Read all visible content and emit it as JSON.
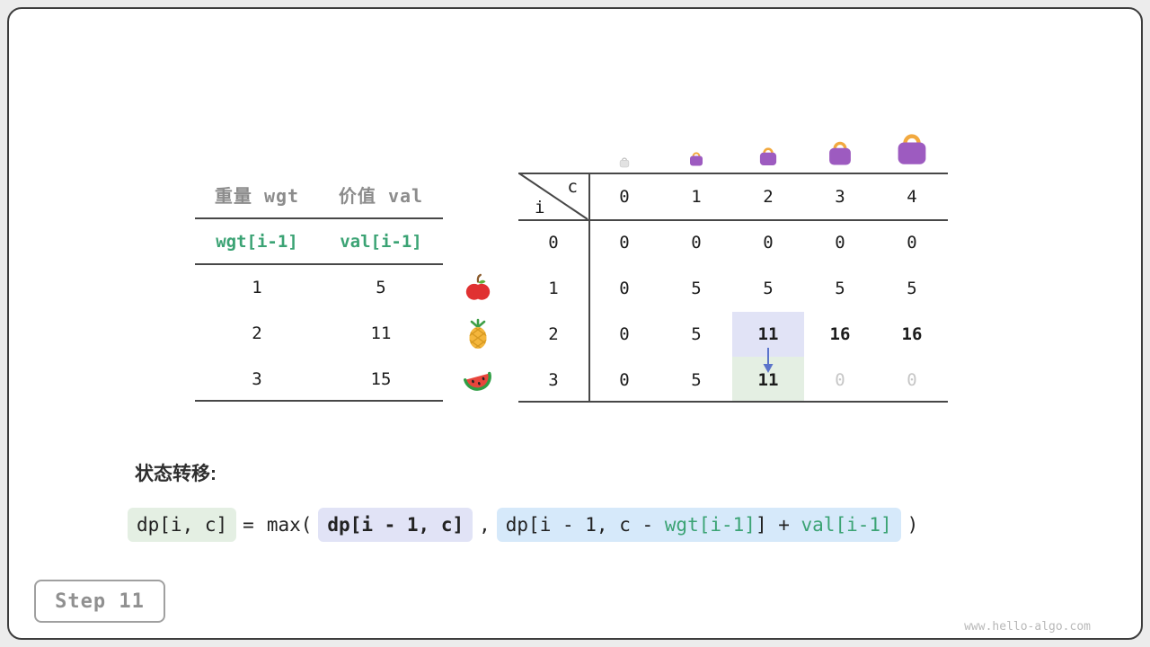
{
  "page": {
    "step_label": "Step 11",
    "watermark": "www.hello-algo.com"
  },
  "items_table": {
    "headers": {
      "weight": "重量 wgt",
      "value": "价值 val"
    },
    "subheaders": {
      "weight": "wgt[i-1]",
      "value": "val[i-1]"
    },
    "rows": [
      {
        "weight": "1",
        "value": "5",
        "fruit": "apple"
      },
      {
        "weight": "2",
        "value": "11",
        "fruit": "pineapple"
      },
      {
        "weight": "3",
        "value": "15",
        "fruit": "watermelon"
      }
    ]
  },
  "dp_table": {
    "corner": {
      "row_var": "i",
      "col_var": "c"
    },
    "col_headers": [
      "0",
      "1",
      "2",
      "3",
      "4"
    ],
    "rows": [
      {
        "header": "0",
        "cells": [
          {
            "v": "0"
          },
          {
            "v": "0"
          },
          {
            "v": "0"
          },
          {
            "v": "0"
          },
          {
            "v": "0"
          }
        ]
      },
      {
        "header": "1",
        "cells": [
          {
            "v": "0"
          },
          {
            "v": "5"
          },
          {
            "v": "5"
          },
          {
            "v": "5"
          },
          {
            "v": "5"
          }
        ]
      },
      {
        "header": "2",
        "cells": [
          {
            "v": "0"
          },
          {
            "v": "5"
          },
          {
            "v": "11",
            "bold": true,
            "bg": "lavender"
          },
          {
            "v": "16",
            "bold": true
          },
          {
            "v": "16",
            "bold": true
          }
        ]
      },
      {
        "header": "3",
        "cells": [
          {
            "v": "0"
          },
          {
            "v": "5"
          },
          {
            "v": "11",
            "bold": true,
            "bg": "green"
          },
          {
            "v": "0",
            "dim": true
          },
          {
            "v": "0",
            "dim": true
          }
        ]
      }
    ],
    "bags": [
      {
        "capacity": "0",
        "size": 14,
        "variant": "outline"
      },
      {
        "capacity": "1",
        "size": 20,
        "variant": "solid"
      },
      {
        "capacity": "2",
        "size": 26,
        "variant": "solid"
      },
      {
        "capacity": "3",
        "size": 34,
        "variant": "solid"
      },
      {
        "capacity": "4",
        "size": 44,
        "variant": "solid"
      }
    ]
  },
  "transition": {
    "title": "状态转移:",
    "lhs": "dp[i, c]",
    "equals": "=",
    "max_open": "max(",
    "keep_term": "dp[i - 1, c]",
    "comma": ",",
    "take_prefix": "dp[i - 1, c - ",
    "take_wgt": "wgt[i-1]",
    "take_mid": "] + ",
    "take_val": "val[i-1]",
    "close_paren": ")"
  },
  "colors": {
    "teal": "#3ba374",
    "lavender_bg": "#e1e3f6",
    "green_bg": "#e4efe3",
    "blue_bg": "#d6e9fa",
    "bag_purple": "#9d5bc0",
    "bag_handle": "#f2a93f",
    "arrow_blue": "#5b74ca",
    "line": "#474747"
  }
}
